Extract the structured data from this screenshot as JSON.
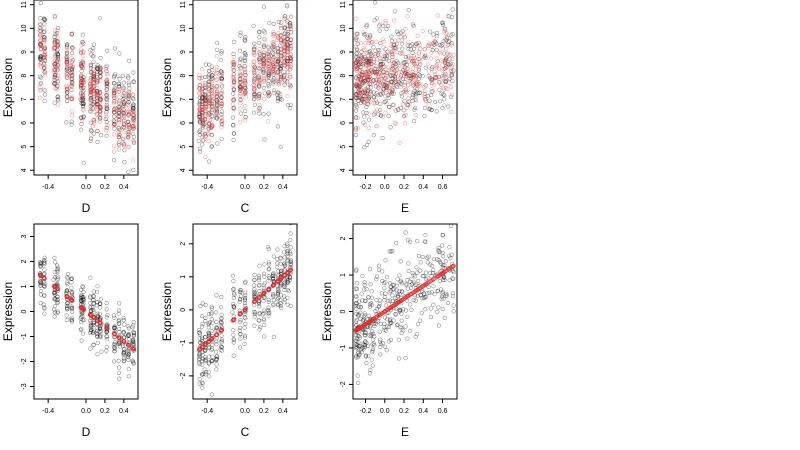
{
  "chart_data": [
    {
      "type": "scatter",
      "xlabel": "D",
      "ylabel": "Expression",
      "xlim": [
        -0.55,
        0.55
      ],
      "ylim": [
        3.8,
        11.2
      ],
      "xticks": [
        -0.4,
        0.0,
        0.2,
        0.4
      ],
      "xticklabels": [
        "-0.4",
        "0.0",
        "0.2",
        "0.4"
      ],
      "yticks": [
        4,
        5,
        6,
        7,
        8,
        9,
        10,
        11
      ],
      "yticklabels": [
        "4",
        "5",
        "6",
        "7",
        "8",
        "9",
        "10",
        "11"
      ],
      "gen": {
        "kind": "slope",
        "xgroups": [
          -0.48,
          -0.44,
          -0.33,
          -0.3,
          -0.2,
          -0.15,
          -0.05,
          -0.03,
          0.05,
          0.08,
          0.12,
          0.15,
          0.22,
          0.3,
          0.35,
          0.4,
          0.45,
          0.5
        ],
        "intercept": 7.6,
        "slope": -3.0,
        "noise": 1.0,
        "n": 22
      },
      "series": [
        {
          "color": "#000000",
          "role": "observed"
        },
        {
          "color": "#e03030",
          "role": "fitted"
        }
      ]
    },
    {
      "type": "scatter",
      "xlabel": "C",
      "ylabel": "Expression",
      "xlim": [
        -0.55,
        0.55
      ],
      "ylim": [
        3.8,
        11.2
      ],
      "xticks": [
        -0.4,
        0.0,
        0.2,
        0.4
      ],
      "xticklabels": [
        "-0.4",
        "0.0",
        "0.2",
        "0.4"
      ],
      "yticks": [
        4,
        5,
        6,
        7,
        8,
        9,
        10,
        11
      ],
      "yticklabels": [
        "4",
        "5",
        "6",
        "7",
        "8",
        "9",
        "10",
        "11"
      ],
      "gen": {
        "kind": "slope",
        "xgroups": [
          -0.48,
          -0.45,
          -0.42,
          -0.38,
          -0.35,
          -0.3,
          -0.25,
          -0.12,
          -0.05,
          0.0,
          0.1,
          0.15,
          0.2,
          0.25,
          0.3,
          0.35,
          0.38,
          0.42,
          0.45,
          0.48
        ],
        "intercept": 7.8,
        "slope": 2.5,
        "noise": 1.0,
        "n": 20
      },
      "series": [
        {
          "color": "#000000",
          "role": "observed"
        },
        {
          "color": "#e03030",
          "role": "fitted"
        }
      ]
    },
    {
      "type": "scatter",
      "xlabel": "E",
      "ylabel": "Expression",
      "xlim": [
        -0.33,
        0.75
      ],
      "ylim": [
        3.8,
        11.2
      ],
      "xticks": [
        -0.2,
        0.0,
        0.2,
        0.4,
        0.6
      ],
      "xticklabels": [
        "-0.2",
        "0.0",
        "0.2",
        "0.4",
        "0.6"
      ],
      "yticks": [
        4,
        5,
        6,
        7,
        8,
        9,
        10,
        11
      ],
      "yticklabels": [
        "4",
        "5",
        "6",
        "7",
        "8",
        "9",
        "10",
        "11"
      ],
      "gen": {
        "kind": "cloud",
        "xmin": -0.3,
        "xmax": 0.72,
        "center": 8.0,
        "slope": 0.5,
        "noise": 1.1,
        "n": 420
      },
      "series": [
        {
          "color": "#000000",
          "role": "observed"
        },
        {
          "color": "#e03030",
          "role": "fitted"
        }
      ]
    },
    {
      "type": "scatter",
      "xlabel": "D",
      "ylabel": "Expression",
      "xlim": [
        -0.55,
        0.55
      ],
      "ylim": [
        -3.5,
        3.5
      ],
      "xticks": [
        -0.4,
        0.0,
        0.2,
        0.4
      ],
      "xticklabels": [
        "-0.4",
        "0.0",
        "0.2",
        "0.4"
      ],
      "yticks": [
        -3,
        -2,
        -1,
        0,
        1,
        2,
        3
      ],
      "yticklabels": [
        "-3",
        "-2",
        "-1",
        "0",
        "1",
        "2",
        "3"
      ],
      "gen": {
        "kind": "slope",
        "xgroups": [
          -0.48,
          -0.44,
          -0.33,
          -0.3,
          -0.2,
          -0.15,
          -0.05,
          -0.03,
          0.05,
          0.08,
          0.12,
          0.15,
          0.22,
          0.3,
          0.35,
          0.4,
          0.45,
          0.5
        ],
        "intercept": 0.0,
        "slope": -3.0,
        "noise": 0.55,
        "n": 22
      },
      "series": [
        {
          "color": "#000000",
          "role": "observed"
        },
        {
          "color": "#e03030",
          "role": "fitted",
          "fit": {
            "slope": -3.0,
            "intercept": 0.0
          }
        }
      ]
    },
    {
      "type": "scatter",
      "xlabel": "C",
      "ylabel": "Expression",
      "xlim": [
        -0.55,
        0.55
      ],
      "ylim": [
        -2.7,
        2.6
      ],
      "xticks": [
        -0.4,
        0.0,
        0.2,
        0.4
      ],
      "xticklabels": [
        "-0.4",
        "0.0",
        "0.2",
        "0.4"
      ],
      "yticks": [
        -2,
        -1,
        0,
        1,
        2
      ],
      "yticklabels": [
        "-2",
        "-1",
        "0",
        "1",
        "2"
      ],
      "gen": {
        "kind": "slope",
        "xgroups": [
          -0.48,
          -0.45,
          -0.42,
          -0.38,
          -0.35,
          -0.3,
          -0.25,
          -0.12,
          -0.05,
          0.0,
          0.1,
          0.15,
          0.2,
          0.25,
          0.3,
          0.35,
          0.38,
          0.42,
          0.45,
          0.48
        ],
        "intercept": 0.0,
        "slope": 2.5,
        "noise": 0.55,
        "n": 20
      },
      "series": [
        {
          "color": "#000000",
          "role": "observed"
        },
        {
          "color": "#e03030",
          "role": "fitted",
          "fit": {
            "slope": 2.5,
            "intercept": 0.0
          }
        }
      ]
    },
    {
      "type": "scatter",
      "xlabel": "E",
      "ylabel": "Expression",
      "xlim": [
        -0.33,
        0.75
      ],
      "ylim": [
        -2.4,
        2.4
      ],
      "xticks": [
        -0.2,
        0.0,
        0.2,
        0.4,
        0.6
      ],
      "xticklabels": [
        "-0.2",
        "0.0",
        "0.2",
        "0.4",
        "0.6"
      ],
      "yticks": [
        -2,
        -1,
        0,
        1,
        2
      ],
      "yticklabels": [
        "-2",
        "-1",
        "0",
        "1",
        "2"
      ],
      "gen": {
        "kind": "cloud",
        "xmin": -0.3,
        "xmax": 0.72,
        "center": 0.0,
        "slope": 1.75,
        "noise": 0.6,
        "n": 420
      },
      "series": [
        {
          "color": "#000000",
          "role": "observed"
        },
        {
          "color": "#e03030",
          "role": "fitted",
          "fit": {
            "slope": 1.75,
            "intercept": 0.0
          }
        }
      ]
    }
  ]
}
